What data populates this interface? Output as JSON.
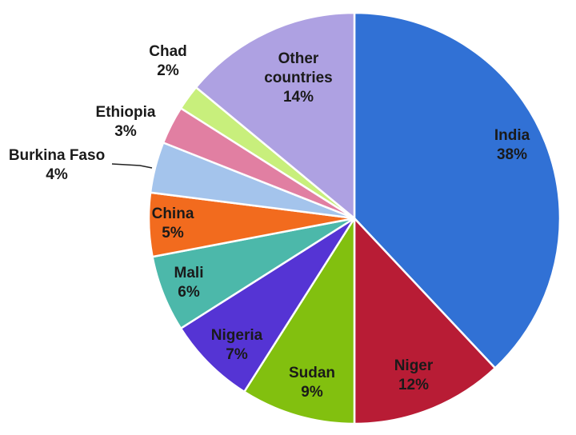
{
  "chart_data": {
    "type": "pie",
    "title": "",
    "slices": [
      {
        "label": "India",
        "value": 38,
        "display": "38%",
        "color": "#3171d5",
        "text_color": "#1a1a1a"
      },
      {
        "label": "Niger",
        "value": 12,
        "display": "12%",
        "color": "#b81c35",
        "text_color": "#1a1a1a"
      },
      {
        "label": "Sudan",
        "value": 9,
        "display": "9%",
        "color": "#82c00f",
        "text_color": "#1a1a1a"
      },
      {
        "label": "Nigeria",
        "value": 7,
        "display": "7%",
        "color": "#5534d4",
        "text_color": "#1a1a1a"
      },
      {
        "label": "Mali",
        "value": 6,
        "display": "6%",
        "color": "#4cb8aa",
        "text_color": "#1a1a1a"
      },
      {
        "label": "China",
        "value": 5,
        "display": "5%",
        "color": "#f26b1e",
        "text_color": "#1a1a1a"
      },
      {
        "label": "Burkina Faso",
        "value": 4,
        "display": "4%",
        "color": "#a4c4ec",
        "text_color": "#1a1a1a"
      },
      {
        "label": "Ethiopia",
        "value": 3,
        "display": "3%",
        "color": "#e17fa2",
        "text_color": "#1a1a1a"
      },
      {
        "label": "Chad",
        "value": 2,
        "display": "2%",
        "color": "#c8ef7c",
        "text_color": "#1a1a1a"
      },
      {
        "label": "Other countries",
        "value": 14,
        "display": "14%",
        "color": "#aea1e2",
        "text_color": "#1a1a1a"
      }
    ]
  }
}
